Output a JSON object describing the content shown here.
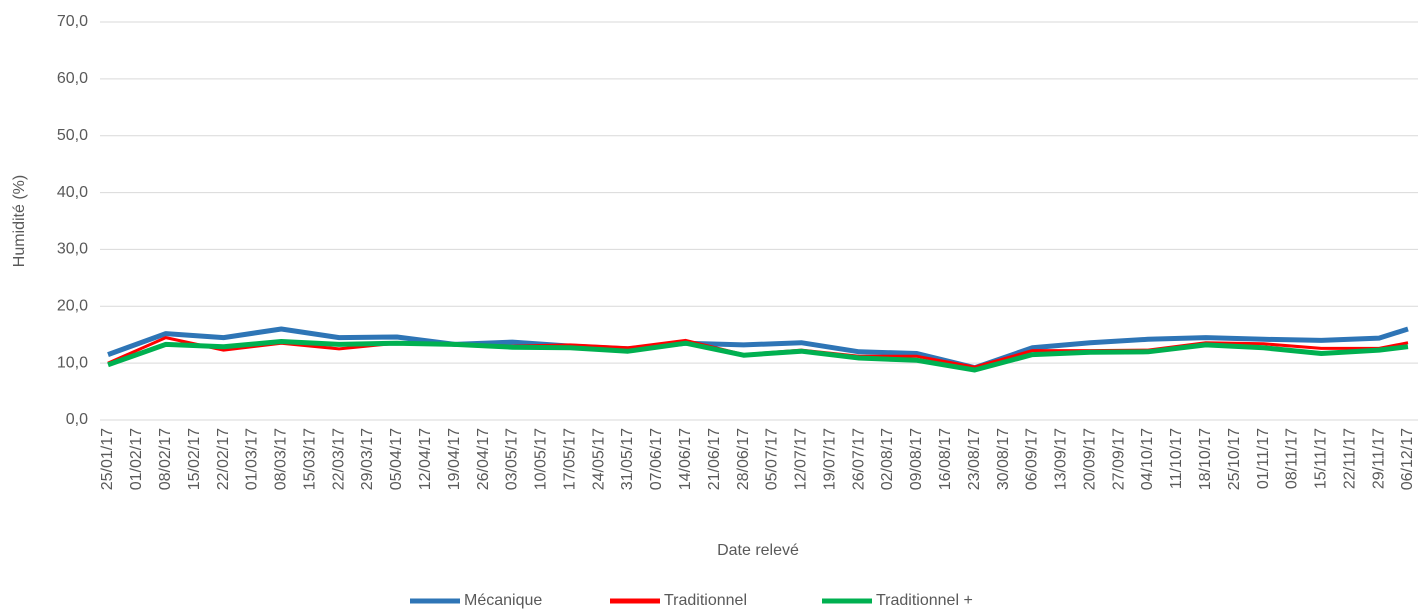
{
  "chart_data": {
    "type": "line",
    "y_label": "Humidité (%)",
    "x_label": "Date relevé",
    "x": [
      "25/01/17",
      "08/02/17",
      "22/02/17",
      "08/03/17",
      "22/03/17",
      "05/04/17",
      "19/04/17",
      "03/05/17",
      "17/05/17",
      "31/05/17",
      "14/06/17",
      "28/06/17",
      "12/07/17",
      "26/07/17",
      "09/08/17",
      "23/08/17",
      "06/09/17",
      "20/09/17",
      "04/10/17",
      "18/10/17",
      "01/11/17",
      "15/11/17",
      "29/11/17",
      "06/12/17"
    ],
    "xlim": [
      "25/01/17",
      "06/12/17"
    ],
    "xticks": [
      "25/01/17",
      "01/02/17",
      "08/02/17",
      "15/02/17",
      "22/02/17",
      "01/03/17",
      "08/03/17",
      "15/03/17",
      "22/03/17",
      "29/03/17",
      "05/04/17",
      "12/04/17",
      "19/04/17",
      "26/04/17",
      "03/05/17",
      "10/05/17",
      "17/05/17",
      "24/05/17",
      "31/05/17",
      "07/06/17",
      "14/06/17",
      "21/06/17",
      "28/06/17",
      "05/07/17",
      "12/07/17",
      "19/07/17",
      "26/07/17",
      "02/08/17",
      "09/08/17",
      "16/08/17",
      "23/08/17",
      "30/08/17",
      "06/09/17",
      "13/09/17",
      "20/09/17",
      "27/09/17",
      "04/10/17",
      "11/10/17",
      "18/10/17",
      "25/10/17",
      "01/11/17",
      "08/11/17",
      "15/11/17",
      "22/11/17",
      "29/11/17",
      "06/12/17"
    ],
    "ylim": [
      0,
      70
    ],
    "yticks": [
      {
        "value": 0,
        "label": "0,0"
      },
      {
        "value": 10,
        "label": "10,0"
      },
      {
        "value": 20,
        "label": "20,0"
      },
      {
        "value": 30,
        "label": "30,0"
      },
      {
        "value": 40,
        "label": "40,0"
      },
      {
        "value": 50,
        "label": "50,0"
      },
      {
        "value": 60,
        "label": "60,0"
      },
      {
        "value": 70,
        "label": "70,0"
      }
    ],
    "grid": true,
    "legend": "bottom",
    "series": [
      {
        "name": "Mécanique",
        "color": "#2e75b6",
        "values": [
          11.5,
          15.2,
          14.5,
          16.0,
          14.5,
          14.6,
          13.3,
          13.7,
          13.0,
          12.5,
          13.5,
          13.2,
          13.6,
          12.0,
          11.7,
          9.2,
          12.7,
          13.6,
          14.2,
          14.5,
          14.2,
          14.0,
          14.4,
          16.0
        ]
      },
      {
        "name": "Traditionnel",
        "color": "#ff0000",
        "values": [
          10.0,
          14.5,
          12.3,
          13.5,
          12.5,
          13.5,
          13.3,
          13.0,
          13.2,
          12.7,
          14.0,
          11.5,
          12.3,
          11.2,
          11.2,
          9.3,
          12.2,
          12.2,
          12.3,
          13.6,
          13.4,
          12.6,
          12.6,
          13.6
        ]
      },
      {
        "name": "Traditionnel +",
        "color": "#00b050",
        "values": [
          9.7,
          13.3,
          12.9,
          13.8,
          13.3,
          13.5,
          13.3,
          12.8,
          12.7,
          12.1,
          13.5,
          11.4,
          12.1,
          10.9,
          10.5,
          8.8,
          11.5,
          11.9,
          12.0,
          13.2,
          12.7,
          11.7,
          12.3,
          12.9
        ]
      }
    ]
  }
}
